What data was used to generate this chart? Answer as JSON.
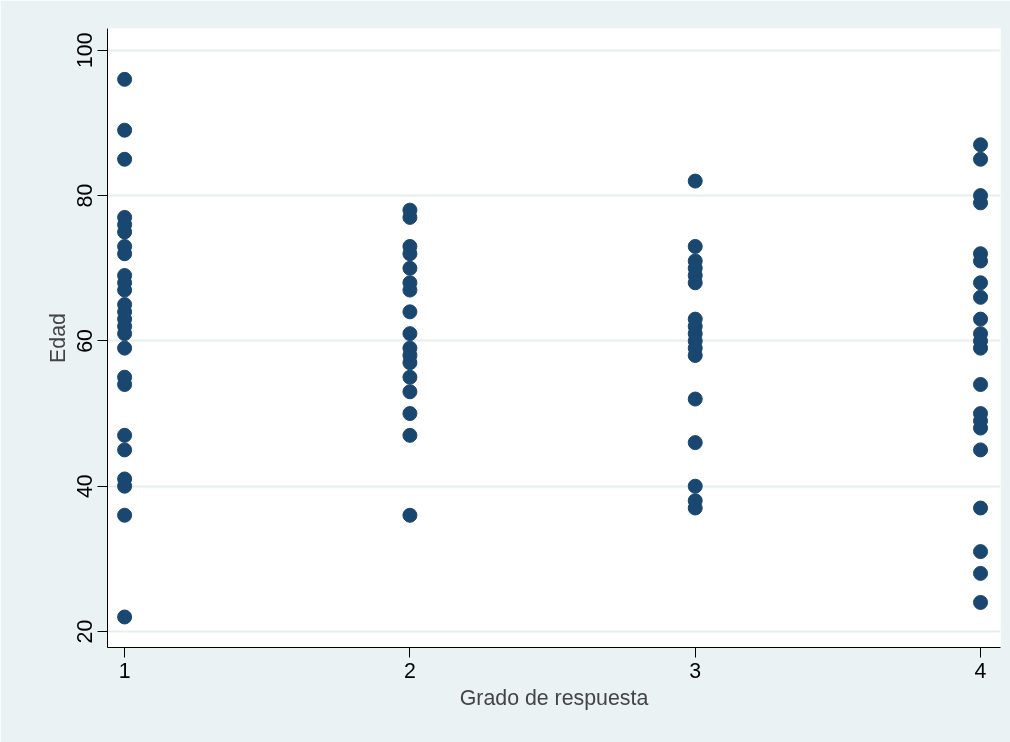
{
  "chart_data": {
    "type": "scatter",
    "xlabel": "Grado de respuesta",
    "ylabel": "Edad",
    "xlim": [
      0.94,
      4.07
    ],
    "xticks": [
      1,
      2,
      3,
      4
    ],
    "ylim": [
      17.8,
      103
    ],
    "yticks": [
      20,
      40,
      60,
      80,
      100
    ],
    "grid": "y",
    "marker": "circle",
    "series": [
      {
        "color": "#1a476f",
        "x": [
          1,
          1,
          1,
          1,
          1,
          1,
          1,
          1,
          1,
          1,
          1,
          1,
          1,
          1,
          1,
          1,
          1,
          1,
          1,
          1,
          1,
          1,
          1,
          1,
          1
        ],
        "values": [
          96,
          89,
          85,
          77,
          76,
          75,
          73,
          72,
          69,
          68,
          67,
          65,
          64,
          63,
          62,
          61,
          59,
          55,
          54,
          47,
          45,
          41,
          40,
          36,
          22
        ]
      },
      {
        "color": "#1a476f",
        "x": [
          2,
          2,
          2,
          2,
          2,
          2,
          2,
          2,
          2,
          2,
          2,
          2,
          2,
          2,
          2,
          2,
          2
        ],
        "values": [
          78,
          77,
          73,
          72,
          70,
          68,
          67,
          64,
          61,
          59,
          58,
          57,
          55,
          53,
          50,
          47,
          36
        ]
      },
      {
        "color": "#1a476f",
        "x": [
          3,
          3,
          3,
          3,
          3,
          3,
          3,
          3,
          3,
          3,
          3,
          3,
          3,
          3,
          3,
          3,
          3
        ],
        "values": [
          82,
          73,
          71,
          70,
          69,
          68,
          63,
          62,
          61,
          60,
          59,
          58,
          52,
          46,
          40,
          38,
          37
        ]
      },
      {
        "color": "#1a476f",
        "x": [
          4,
          4,
          4,
          4,
          4,
          4,
          4,
          4,
          4,
          4,
          4,
          4,
          4,
          4,
          4,
          4,
          4,
          4,
          4,
          4,
          4
        ],
        "values": [
          87,
          85,
          80,
          79,
          72,
          71,
          68,
          66,
          63,
          61,
          60,
          59,
          54,
          50,
          49,
          48,
          45,
          37,
          31,
          28,
          24
        ]
      }
    ]
  }
}
